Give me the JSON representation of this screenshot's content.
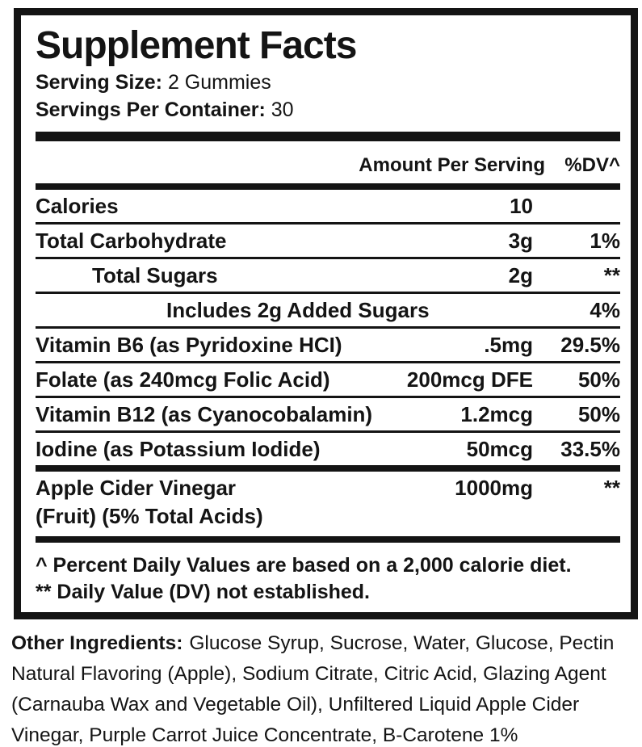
{
  "label": {
    "title": "Supplement Facts",
    "serving_size_label": "Serving Size:",
    "serving_size_value": "2 Gummies",
    "servings_per_container_label": "Servings Per Container:",
    "servings_per_container_value": "30",
    "columns": {
      "amount": "Amount Per Serving",
      "dv": "%DV^"
    },
    "rows": [
      {
        "name": "Calories",
        "amount": "10",
        "dv": ""
      },
      {
        "name": "Total Carbohydrate",
        "amount": "3g",
        "dv": "1%"
      },
      {
        "name": "Total Sugars",
        "amount": "2g",
        "dv": "**"
      },
      {
        "name": "Includes 2g Added Sugars",
        "amount": "",
        "dv": "4%"
      },
      {
        "name": "Vitamin B6 (as Pyridoxine HCI)",
        "amount": ".5mg",
        "dv": "29.5%"
      },
      {
        "name": "Folate (as 240mcg Folic Acid)",
        "amount": "200mcg DFE",
        "dv": "50%"
      },
      {
        "name": "Vitamin B12 (as Cyanocobalamin)",
        "amount": "1.2mcg",
        "dv": "50%"
      },
      {
        "name": "Iodine (as Potassium Iodide)",
        "amount": "50mcg",
        "dv": "33.5%"
      }
    ],
    "acv": {
      "name": "Apple Cider Vinegar",
      "amount": "1000mg",
      "dv": "**",
      "subline": "(Fruit) (5% Total Acids)"
    },
    "footnotes": [
      "^ Percent Daily Values are based on a 2,000 calorie diet.",
      "** Daily Value (DV) not established."
    ]
  },
  "other_ingredients": {
    "label": "Other Ingredients:",
    "text": "Glucose Syrup, Sucrose, Water, Glucose, Pectin Natural Flavoring (Apple), Sodium Citrate, Citric Acid, Glazing Agent (Carnauba Wax and Vegetable Oil), Unfiltered Liquid Apple Cider Vinegar, Purple Carrot Juice Concentrate, B-Carotene 1%"
  },
  "colors": {
    "ink": "#141414",
    "background": "#ffffff"
  }
}
